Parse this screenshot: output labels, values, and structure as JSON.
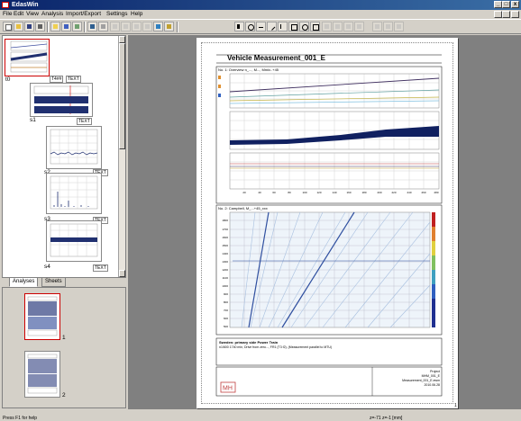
{
  "window": {
    "title": "EdasWin",
    "min_label": "_",
    "max_label": "□",
    "close_label": "x"
  },
  "menu": [
    "File",
    "Edit",
    "View",
    "Analysis",
    "Import/Export",
    "Settings",
    "Help"
  ],
  "toolbar": {
    "buttons": [
      "new-icon",
      "open-icon",
      "save-icon",
      "print-icon",
      "folder-icon",
      "cut-icon",
      "copy-icon",
      "paste-icon",
      "properties-icon",
      "layout-icon",
      "cursor-icon",
      "zoom-in-icon",
      "zoom-out-icon",
      "pan-icon",
      "line-tool-icon",
      "rect-tool-icon",
      "circle-tool-icon",
      "text-tool-icon",
      "image-tool-icon",
      "grid-icon",
      "table-icon",
      "align-icon"
    ]
  },
  "tree": {
    "items": [
      {
        "label": "t0",
        "tag1": "T4##",
        "tag2": "TEXT"
      },
      {
        "label": "s1",
        "tag1": "TEXT"
      },
      {
        "label": "s2",
        "tag1": "TEXT"
      },
      {
        "label": "s3",
        "tag1": "TEXT"
      },
      {
        "label": "s4",
        "tag1": "TEXT"
      }
    ]
  },
  "tabs": {
    "analyses": "Analyses",
    "sheets": "Sheets"
  },
  "pages": [
    "1",
    "2"
  ],
  "document": {
    "title": "Vehicle Measurement_001_E",
    "section1": "No. 1: Overview n_..., M..., Mmix..+45",
    "section2": "No. 2: Campbell, M_...+45_xxx",
    "xaxis_ticks": [
      "20",
      "40",
      "60",
      "80",
      "100",
      "120",
      "140",
      "160",
      "180",
      "200",
      "220",
      "240",
      "260",
      "280"
    ],
    "yticks2": [
      "1800",
      "1700",
      "1600",
      "1500",
      "1400",
      "1300",
      "1200",
      "1100",
      "1000",
      "900",
      "800",
      "700",
      "600",
      "500"
    ],
    "note_title": "Sweden: primary side Power Train",
    "note_text": "n1/600 1740 min, Drive from zero..., FR1 (T3 f2), (Measurement parallel to MTU)",
    "logo": "MH",
    "footer_right": [
      "Project",
      "MHM_001_E",
      "Measurement_001_E.ewm",
      "2010.06.28"
    ],
    "page_number": "1"
  },
  "status": {
    "left": "Press F1 for help",
    "middle": "z=-71 z=-1 [mm]"
  }
}
